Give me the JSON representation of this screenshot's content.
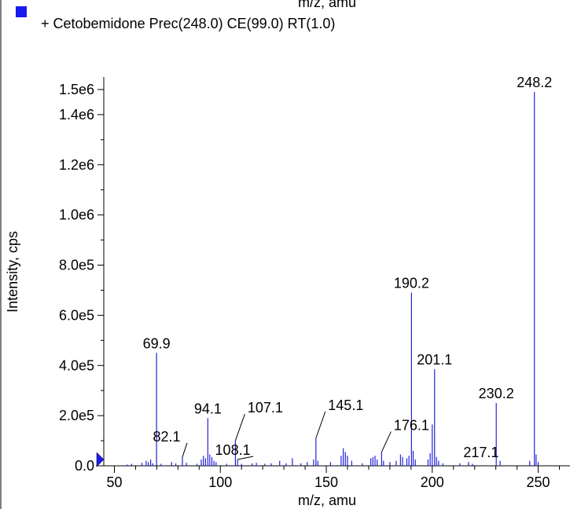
{
  "top_clipped_label": "m/z, amu",
  "legend": {
    "text": "+ Cetobemidone Prec(248.0) CE(99.0) RT(1.0)",
    "color": "#1a1aee"
  },
  "chart_data": {
    "type": "bar",
    "xlabel": "m/z, amu",
    "ylabel": "Intensity, cps",
    "xlim": [
      45,
      265
    ],
    "ylim": [
      0,
      1550000
    ],
    "x_ticks": [
      50,
      100,
      150,
      200,
      250
    ],
    "y_ticks": [
      {
        "value": 0,
        "label": "0.0"
      },
      {
        "value": 200000,
        "label": "2.0e5"
      },
      {
        "value": 400000,
        "label": "4.0e5"
      },
      {
        "value": 600000,
        "label": "6.0e5"
      },
      {
        "value": 800000,
        "label": "8.0e5"
      },
      {
        "value": 1000000,
        "label": "1.0e6"
      },
      {
        "value": 1200000,
        "label": "1.2e6"
      },
      {
        "value": 1400000,
        "label": "1.4e6"
      },
      {
        "value": 1500000,
        "label": "1.5e6"
      }
    ],
    "series_color": "#2222dd",
    "peaks": [
      {
        "mz": 56.1,
        "intensity": 5000
      },
      {
        "mz": 58.1,
        "intensity": 8000
      },
      {
        "mz": 63.0,
        "intensity": 12000
      },
      {
        "mz": 65.0,
        "intensity": 20000
      },
      {
        "mz": 66.0,
        "intensity": 15000
      },
      {
        "mz": 67.1,
        "intensity": 25000
      },
      {
        "mz": 68.1,
        "intensity": 10000
      },
      {
        "mz": 69.9,
        "intensity": 450000,
        "label": "69.9"
      },
      {
        "mz": 72.0,
        "intensity": 8000
      },
      {
        "mz": 77.0,
        "intensity": 15000
      },
      {
        "mz": 79.0,
        "intensity": 10000
      },
      {
        "mz": 82.1,
        "intensity": 35000,
        "label": "82.1"
      },
      {
        "mz": 84.0,
        "intensity": 12000
      },
      {
        "mz": 89.0,
        "intensity": 8000
      },
      {
        "mz": 91.0,
        "intensity": 25000
      },
      {
        "mz": 92.0,
        "intensity": 40000
      },
      {
        "mz": 93.0,
        "intensity": 30000
      },
      {
        "mz": 94.1,
        "intensity": 190000,
        "label": "94.1"
      },
      {
        "mz": 95.0,
        "intensity": 45000
      },
      {
        "mz": 96.0,
        "intensity": 35000
      },
      {
        "mz": 97.0,
        "intensity": 20000
      },
      {
        "mz": 98.0,
        "intensity": 15000
      },
      {
        "mz": 103.0,
        "intensity": 8000
      },
      {
        "mz": 107.1,
        "intensity": 100000,
        "label": "107.1"
      },
      {
        "mz": 108.1,
        "intensity": 25000,
        "label": "108.1"
      },
      {
        "mz": 110.0,
        "intensity": 8000
      },
      {
        "mz": 115.0,
        "intensity": 10000
      },
      {
        "mz": 117.0,
        "intensity": 12000
      },
      {
        "mz": 121.0,
        "intensity": 8000
      },
      {
        "mz": 124.0,
        "intensity": 10000
      },
      {
        "mz": 128.0,
        "intensity": 20000
      },
      {
        "mz": 131.0,
        "intensity": 10000
      },
      {
        "mz": 134.0,
        "intensity": 30000
      },
      {
        "mz": 138.0,
        "intensity": 10000
      },
      {
        "mz": 141.0,
        "intensity": 15000
      },
      {
        "mz": 144.0,
        "intensity": 25000
      },
      {
        "mz": 145.1,
        "intensity": 110000,
        "label": "145.1"
      },
      {
        "mz": 146.0,
        "intensity": 20000
      },
      {
        "mz": 152.0,
        "intensity": 15000
      },
      {
        "mz": 157.0,
        "intensity": 40000
      },
      {
        "mz": 158.0,
        "intensity": 70000
      },
      {
        "mz": 159.0,
        "intensity": 55000
      },
      {
        "mz": 160.0,
        "intensity": 40000
      },
      {
        "mz": 162.0,
        "intensity": 20000
      },
      {
        "mz": 167.0,
        "intensity": 10000
      },
      {
        "mz": 171.0,
        "intensity": 30000
      },
      {
        "mz": 172.0,
        "intensity": 35000
      },
      {
        "mz": 173.0,
        "intensity": 40000
      },
      {
        "mz": 174.0,
        "intensity": 25000
      },
      {
        "mz": 176.1,
        "intensity": 55000,
        "label": "176.1"
      },
      {
        "mz": 177.0,
        "intensity": 20000
      },
      {
        "mz": 180.0,
        "intensity": 15000
      },
      {
        "mz": 183.0,
        "intensity": 20000
      },
      {
        "mz": 185.0,
        "intensity": 45000
      },
      {
        "mz": 186.0,
        "intensity": 35000
      },
      {
        "mz": 188.0,
        "intensity": 30000
      },
      {
        "mz": 189.0,
        "intensity": 40000
      },
      {
        "mz": 190.2,
        "intensity": 690000,
        "label": "190.2"
      },
      {
        "mz": 191.0,
        "intensity": 60000
      },
      {
        "mz": 192.0,
        "intensity": 25000
      },
      {
        "mz": 198.0,
        "intensity": 25000
      },
      {
        "mz": 199.0,
        "intensity": 50000
      },
      {
        "mz": 200.0,
        "intensity": 165000
      },
      {
        "mz": 201.1,
        "intensity": 385000,
        "label": "201.1"
      },
      {
        "mz": 202.0,
        "intensity": 35000
      },
      {
        "mz": 203.0,
        "intensity": 20000
      },
      {
        "mz": 205.0,
        "intensity": 10000
      },
      {
        "mz": 213.0,
        "intensity": 10000
      },
      {
        "mz": 217.1,
        "intensity": 15000,
        "label": "217.1"
      },
      {
        "mz": 219.0,
        "intensity": 8000
      },
      {
        "mz": 230.2,
        "intensity": 250000,
        "label": "230.2"
      },
      {
        "mz": 232.0,
        "intensity": 20000
      },
      {
        "mz": 246.0,
        "intensity": 20000
      },
      {
        "mz": 248.2,
        "intensity": 1490000,
        "label": "248.2"
      },
      {
        "mz": 249.0,
        "intensity": 45000
      },
      {
        "mz": 250.0,
        "intensity": 15000
      }
    ]
  }
}
